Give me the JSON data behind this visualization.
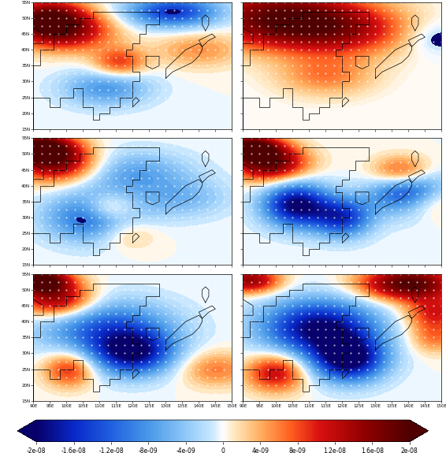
{
  "lon_min": 90,
  "lon_max": 150,
  "lat_min": 15,
  "lat_max": 55,
  "lon_ticks": [
    90,
    95,
    100,
    105,
    110,
    115,
    120,
    125,
    130,
    135,
    140,
    145,
    150
  ],
  "lat_ticks": [
    15,
    20,
    25,
    30,
    35,
    40,
    45,
    50,
    55
  ],
  "lon_labels": [
    "90E",
    "95E",
    "100E",
    "105E",
    "110E",
    "115E",
    "120E",
    "125E",
    "130E",
    "135E",
    "140E",
    "145E",
    "150E"
  ],
  "lat_labels": [
    "15N",
    "20N",
    "25N",
    "30N",
    "35N",
    "40N",
    "45N",
    "50N",
    "55N"
  ],
  "vmin": -2e-08,
  "vmax": 2e-08,
  "colorbar_ticks": [
    -2e-08,
    -1.6e-08,
    -1.2e-08,
    -8e-09,
    -4e-09,
    0,
    4e-09,
    8e-09,
    1.2e-08,
    1.6e-08,
    2e-08
  ],
  "colorbar_ticklabels": [
    "-2e-08",
    "-1.6e-08",
    "-1.2e-08",
    "-8e-09",
    "-4e-09",
    "0",
    "4e-09",
    "8e-09",
    "1.2e-08",
    "1.6e-08",
    "2e-08"
  ],
  "nrows": 3,
  "ncols": 2,
  "figsize": [
    5.66,
    5.75
  ],
  "dpi": 100
}
